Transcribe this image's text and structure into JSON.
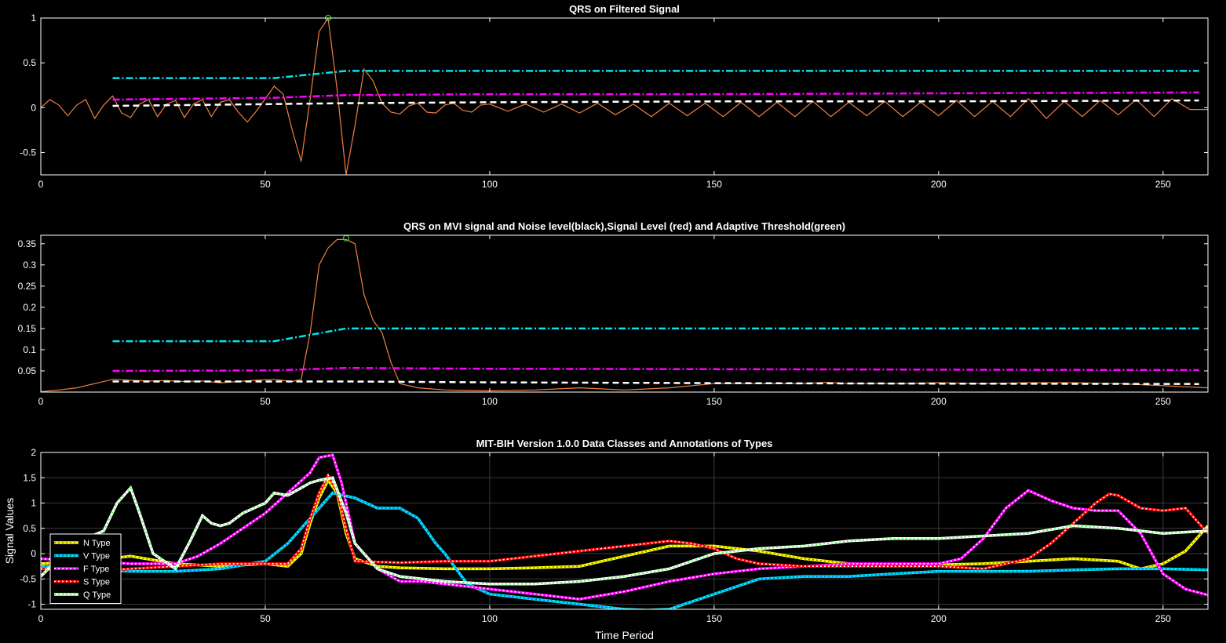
{
  "chart_data": [
    {
      "type": "line",
      "title": "QRS on Filtered Signal",
      "xlabel": "",
      "ylabel": "",
      "xlim": [
        0,
        260
      ],
      "ylim": [
        -0.75,
        1
      ],
      "x_ticks": [
        0,
        50,
        100,
        150,
        200,
        250
      ],
      "y_ticks": [
        -0.5,
        0,
        0.5,
        1
      ],
      "y_tick_labels": [
        "-0.5",
        "0",
        "0.5",
        "1"
      ],
      "grid": false,
      "colors": {
        "signal": "#f08040",
        "upper": "#00e5ee",
        "middle": "#ff00ff",
        "lower": "#ffffff",
        "marker": "#33cc33"
      },
      "series": [
        {
          "kind": "signal",
          "x": [
            0,
            2,
            4,
            6,
            8,
            10,
            12,
            14,
            16,
            18,
            20,
            22,
            24,
            26,
            28,
            30,
            32,
            34,
            36,
            38,
            40,
            42,
            44,
            46,
            48,
            50,
            52,
            54,
            56,
            58,
            60,
            62,
            64,
            66,
            68,
            70,
            72,
            74,
            76,
            78,
            80,
            82,
            84,
            86,
            88,
            90,
            92,
            94,
            96,
            98,
            100,
            104,
            108,
            112,
            116,
            120,
            124,
            128,
            132,
            136,
            140,
            144,
            148,
            152,
            156,
            160,
            164,
            168,
            172,
            176,
            180,
            184,
            188,
            192,
            196,
            200,
            204,
            208,
            212,
            216,
            220,
            224,
            228,
            232,
            236,
            240,
            244,
            248,
            252,
            256,
            260
          ],
          "y": [
            0,
            0.09,
            0.03,
            -0.09,
            0.03,
            0.09,
            -0.12,
            0.03,
            0.13,
            -0.06,
            -0.11,
            0.04,
            0.09,
            -0.1,
            0.04,
            0.08,
            -0.11,
            0.04,
            0.09,
            -0.1,
            0.06,
            0.09,
            -0.05,
            -0.16,
            -0.04,
            0.1,
            0.24,
            0.15,
            -0.25,
            -0.6,
            0.1,
            0.85,
            1,
            0.2,
            -0.75,
            -0.2,
            0.43,
            0.3,
            0.05,
            -0.05,
            -0.07,
            0.02,
            0.05,
            -0.05,
            -0.06,
            0.03,
            0.05,
            -0.03,
            -0.05,
            0.03,
            0.04,
            -0.04,
            0.04,
            -0.05,
            0.04,
            -0.06,
            0.05,
            -0.08,
            0.04,
            -0.1,
            0.05,
            -0.09,
            0.05,
            -0.1,
            0.06,
            -0.1,
            0.06,
            -0.1,
            0.07,
            -0.1,
            0.06,
            -0.09,
            0.07,
            -0.1,
            0.06,
            -0.09,
            0.08,
            -0.1,
            0.07,
            -0.1,
            0.1,
            -0.12,
            0.07,
            -0.1,
            0.08,
            -0.08,
            0.09,
            -0.1,
            0.1,
            -0.02,
            -0.02
          ]
        },
        {
          "kind": "upper",
          "x": [
            16,
            52,
            62,
            68,
            100,
            150,
            200,
            258
          ],
          "y": [
            0.33,
            0.33,
            0.38,
            0.41,
            0.41,
            0.41,
            0.41,
            0.41
          ]
        },
        {
          "kind": "middle",
          "x": [
            16,
            52,
            68,
            100,
            150,
            200,
            258
          ],
          "y": [
            0.09,
            0.11,
            0.14,
            0.15,
            0.15,
            0.16,
            0.17
          ]
        },
        {
          "kind": "lower",
          "x": [
            16,
            52,
            68,
            100,
            150,
            200,
            258
          ],
          "y": [
            0.02,
            0.04,
            0.05,
            0.06,
            0.07,
            0.07,
            0.08
          ]
        }
      ],
      "markers": [
        {
          "x": 64,
          "y": 1
        }
      ]
    },
    {
      "type": "line",
      "title": "QRS on MVI signal and Noise level(black),Signal Level (red) and Adaptive Threshold(green)",
      "xlabel": "",
      "ylabel": "",
      "xlim": [
        0,
        260
      ],
      "ylim": [
        0,
        0.37
      ],
      "x_ticks": [
        0,
        50,
        100,
        150,
        200,
        250
      ],
      "y_ticks": [
        0.05,
        0.1,
        0.15,
        0.2,
        0.25,
        0.3,
        0.35
      ],
      "y_tick_labels": [
        "0.05",
        "0.1",
        "0.15",
        "0.2",
        "0.25",
        "0.3",
        "0.35"
      ],
      "grid": false,
      "colors": {
        "signal": "#f08040",
        "upper": "#00e5ee",
        "middle": "#ff00ff",
        "lower": "#ffffff",
        "marker": "#33cc33"
      },
      "series": [
        {
          "kind": "signal",
          "x": [
            0,
            4,
            8,
            12,
            16,
            20,
            24,
            28,
            32,
            36,
            40,
            44,
            48,
            52,
            56,
            58,
            60,
            62,
            64,
            66,
            68,
            70,
            72,
            74,
            76,
            78,
            80,
            84,
            90,
            100,
            110,
            120,
            130,
            140,
            150,
            160,
            170,
            175,
            180,
            190,
            200,
            210,
            220,
            230,
            240,
            250,
            260
          ],
          "y": [
            0.001,
            0.005,
            0.01,
            0.02,
            0.03,
            0.028,
            0.026,
            0.027,
            0.025,
            0.026,
            0.022,
            0.025,
            0.028,
            0.03,
            0.025,
            0.03,
            0.14,
            0.3,
            0.34,
            0.36,
            0.36,
            0.35,
            0.23,
            0.17,
            0.14,
            0.07,
            0.02,
            0.01,
            0.005,
            0.003,
            0.005,
            0.01,
            0.005,
            0.01,
            0.02,
            0.02,
            0.02,
            0.023,
            0.02,
            0.02,
            0.022,
            0.02,
            0.022,
            0.022,
            0.02,
            0.015,
            0.01
          ]
        },
        {
          "kind": "upper",
          "x": [
            16,
            52,
            60,
            68,
            100,
            150,
            200,
            258
          ],
          "y": [
            0.12,
            0.12,
            0.135,
            0.15,
            0.15,
            0.15,
            0.15,
            0.15
          ]
        },
        {
          "kind": "middle",
          "x": [
            16,
            52,
            68,
            100,
            150,
            200,
            258
          ],
          "y": [
            0.05,
            0.051,
            0.057,
            0.055,
            0.054,
            0.053,
            0.052
          ]
        },
        {
          "kind": "lower",
          "x": [
            16,
            52,
            68,
            100,
            150,
            200,
            258
          ],
          "y": [
            0.025,
            0.025,
            0.025,
            0.023,
            0.021,
            0.02,
            0.019
          ]
        }
      ],
      "markers": [
        {
          "x": 68,
          "y": 0.363
        }
      ]
    },
    {
      "type": "line",
      "title": "MIT-BIH Version 1.0.0 Data Classes and Annotations of Types",
      "xlabel": "Time Period",
      "ylabel": "Signal Values",
      "xlim": [
        0,
        260
      ],
      "ylim": [
        -1.1,
        2
      ],
      "x_ticks": [
        0,
        50,
        100,
        150,
        200,
        250
      ],
      "y_ticks": [
        -1,
        -0.5,
        0,
        0.5,
        1,
        1.5,
        2
      ],
      "y_tick_labels": [
        "-1",
        "-0.5",
        "0",
        "0.5",
        "1",
        "1.5",
        "2"
      ],
      "grid": true,
      "legend": "bottom-left",
      "series": [
        {
          "name": "N Type",
          "color": "#ffff00",
          "dash_color": "#888800",
          "x": [
            0,
            10,
            20,
            30,
            40,
            50,
            55,
            58,
            60,
            62,
            64,
            66,
            68,
            70,
            75,
            80,
            90,
            100,
            110,
            120,
            130,
            140,
            150,
            160,
            170,
            180,
            190,
            200,
            210,
            220,
            230,
            240,
            245,
            250,
            255,
            260
          ],
          "y": [
            -0.2,
            -0.15,
            -0.05,
            -0.2,
            -0.25,
            -0.2,
            -0.25,
            0,
            0.6,
            1.1,
            1.45,
            1.2,
            0.4,
            -0.1,
            -0.25,
            -0.28,
            -0.3,
            -0.3,
            -0.28,
            -0.25,
            -0.05,
            0.15,
            0.15,
            0.05,
            -0.1,
            -0.2,
            -0.22,
            -0.22,
            -0.2,
            -0.15,
            -0.1,
            -0.15,
            -0.3,
            -0.2,
            0.05,
            0.55
          ]
        },
        {
          "name": "V Type",
          "color": "#00e5ee",
          "dash_color": "#0060ff",
          "x": [
            0,
            10,
            20,
            30,
            40,
            50,
            55,
            60,
            65,
            70,
            75,
            80,
            84,
            88,
            90,
            95,
            100,
            110,
            120,
            130,
            135,
            140,
            145,
            150,
            160,
            170,
            180,
            190,
            200,
            210,
            220,
            230,
            240,
            250,
            260
          ],
          "y": [
            -0.25,
            -0.3,
            -0.35,
            -0.35,
            -0.3,
            -0.15,
            0.2,
            0.7,
            1.2,
            1.1,
            0.9,
            0.9,
            0.7,
            0.2,
            0,
            -0.6,
            -0.8,
            -0.9,
            -1.0,
            -1.1,
            -1.12,
            -1.1,
            -0.95,
            -0.8,
            -0.5,
            -0.45,
            -0.45,
            -0.4,
            -0.35,
            -0.35,
            -0.35,
            -0.32,
            -0.3,
            -0.3,
            -0.32
          ]
        },
        {
          "name": "F Type",
          "color": "#ff00ff",
          "dash_color": "#ffffff",
          "x": [
            0,
            10,
            20,
            30,
            35,
            40,
            45,
            50,
            55,
            60,
            62,
            65,
            67,
            70,
            75,
            80,
            85,
            90,
            100,
            110,
            120,
            130,
            140,
            150,
            160,
            170,
            180,
            190,
            200,
            205,
            210,
            215,
            220,
            225,
            230,
            235,
            240,
            245,
            250,
            255,
            260
          ],
          "y": [
            -0.1,
            -0.15,
            -0.2,
            -0.2,
            -0.05,
            0.2,
            0.5,
            0.8,
            1.2,
            1.6,
            1.9,
            1.95,
            1.4,
            0.2,
            -0.3,
            -0.55,
            -0.55,
            -0.6,
            -0.7,
            -0.8,
            -0.9,
            -0.75,
            -0.55,
            -0.4,
            -0.3,
            -0.25,
            -0.2,
            -0.2,
            -0.2,
            -0.1,
            0.3,
            0.9,
            1.25,
            1.05,
            0.9,
            0.85,
            0.85,
            0.4,
            -0.4,
            -0.7,
            -0.82
          ]
        },
        {
          "name": "S Type",
          "color": "#ff0000",
          "dash_color": "#ffffff",
          "x": [
            0,
            10,
            20,
            30,
            40,
            50,
            55,
            58,
            60,
            62,
            64,
            66,
            68,
            70,
            80,
            90,
            100,
            110,
            120,
            130,
            140,
            145,
            150,
            155,
            160,
            170,
            180,
            190,
            200,
            210,
            220,
            225,
            230,
            235,
            238,
            240,
            245,
            250,
            255,
            260
          ],
          "y": [
            -0.3,
            -0.35,
            -0.3,
            -0.25,
            -0.2,
            -0.2,
            -0.2,
            0.1,
            0.7,
            1.2,
            1.55,
            1.25,
            0.5,
            -0.15,
            -0.18,
            -0.15,
            -0.15,
            -0.05,
            0.05,
            0.15,
            0.25,
            0.2,
            0.1,
            -0.1,
            -0.2,
            -0.25,
            -0.25,
            -0.25,
            -0.25,
            -0.3,
            -0.1,
            0.2,
            0.6,
            1.0,
            1.18,
            1.15,
            0.9,
            0.85,
            0.9,
            0.4
          ]
        },
        {
          "name": "Q Type",
          "color": "#ffffff",
          "dash_color": "#33ff33",
          "x": [
            0,
            5,
            10,
            14,
            17,
            20,
            22,
            25,
            30,
            33,
            36,
            38,
            40,
            42,
            45,
            50,
            52,
            55,
            60,
            62,
            65,
            68,
            70,
            75,
            80,
            90,
            100,
            110,
            120,
            130,
            140,
            150,
            160,
            170,
            180,
            190,
            200,
            210,
            220,
            230,
            240,
            250,
            260
          ],
          "y": [
            -0.45,
            0,
            0.3,
            0.45,
            1.0,
            1.3,
            0.8,
            0,
            -0.3,
            0.2,
            0.75,
            0.6,
            0.55,
            0.6,
            0.8,
            1.0,
            1.2,
            1.15,
            1.4,
            1.45,
            1.5,
            0.8,
            0.2,
            -0.3,
            -0.45,
            -0.55,
            -0.6,
            -0.6,
            -0.55,
            -0.45,
            -0.3,
            0,
            0.1,
            0.15,
            0.25,
            0.3,
            0.3,
            0.35,
            0.4,
            0.55,
            0.5,
            0.4,
            0.45
          ]
        }
      ]
    }
  ]
}
